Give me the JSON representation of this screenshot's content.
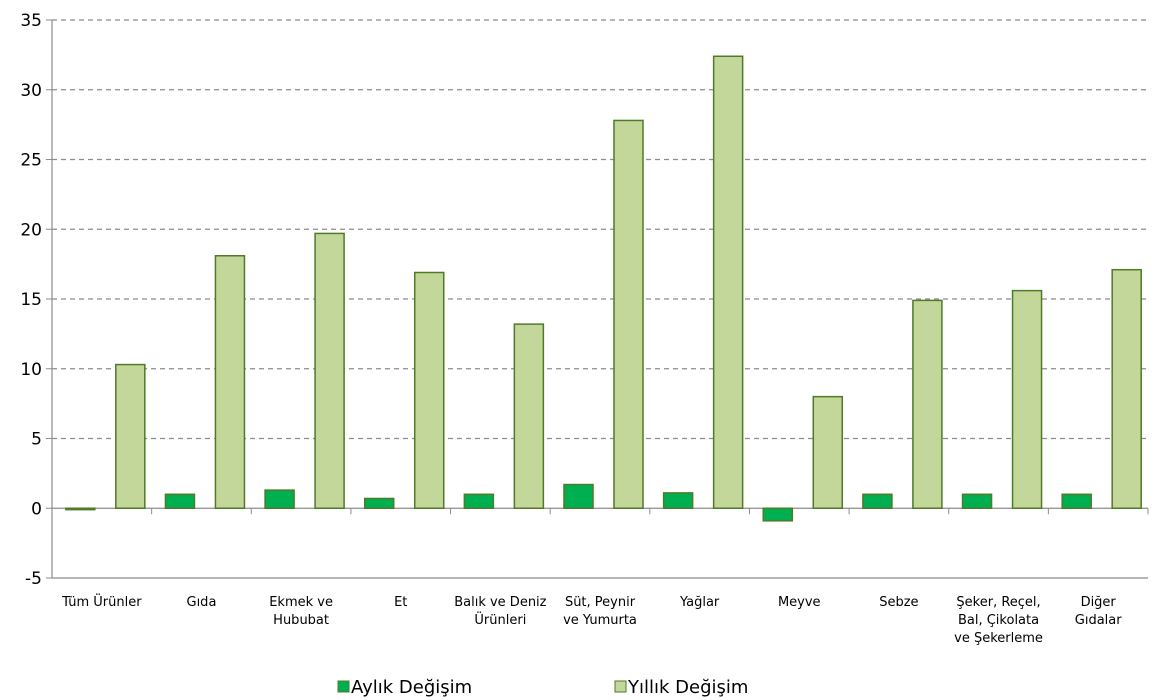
{
  "chart_data": {
    "type": "bar",
    "title": "",
    "xlabel": "",
    "ylabel": "",
    "ylim": [
      -5,
      35
    ],
    "yticks": [
      -5,
      0,
      5,
      10,
      15,
      20,
      25,
      30,
      35
    ],
    "grid": true,
    "legend_position": "bottom",
    "categories": [
      [
        "Tüm Ürünler"
      ],
      [
        "Gıda"
      ],
      [
        "Ekmek ve",
        "Hububat"
      ],
      [
        "Et"
      ],
      [
        "Balık ve Deniz",
        "Ürünleri"
      ],
      [
        "Süt, Peynir",
        "ve Yumurta"
      ],
      [
        "Yağlar"
      ],
      [
        "Meyve"
      ],
      [
        "Sebze"
      ],
      [
        "Şeker, Reçel,",
        "Bal, Çikolata",
        "ve Şekerleme"
      ],
      [
        "Diğer",
        "Gıdalar"
      ]
    ],
    "series": [
      {
        "name": "Aylık Değişim",
        "color": "#00b050",
        "values": [
          -0.1,
          1.0,
          1.3,
          0.7,
          1.0,
          1.7,
          1.1,
          -0.9,
          1.0,
          1.0,
          1.0
        ]
      },
      {
        "name": "Yıllık Değişim",
        "color": "#c4d79b",
        "values": [
          10.3,
          18.1,
          19.7,
          16.9,
          13.2,
          27.8,
          32.4,
          8.0,
          14.9,
          15.6,
          17.1
        ]
      }
    ],
    "bar_stroke": "#4f7a28"
  }
}
